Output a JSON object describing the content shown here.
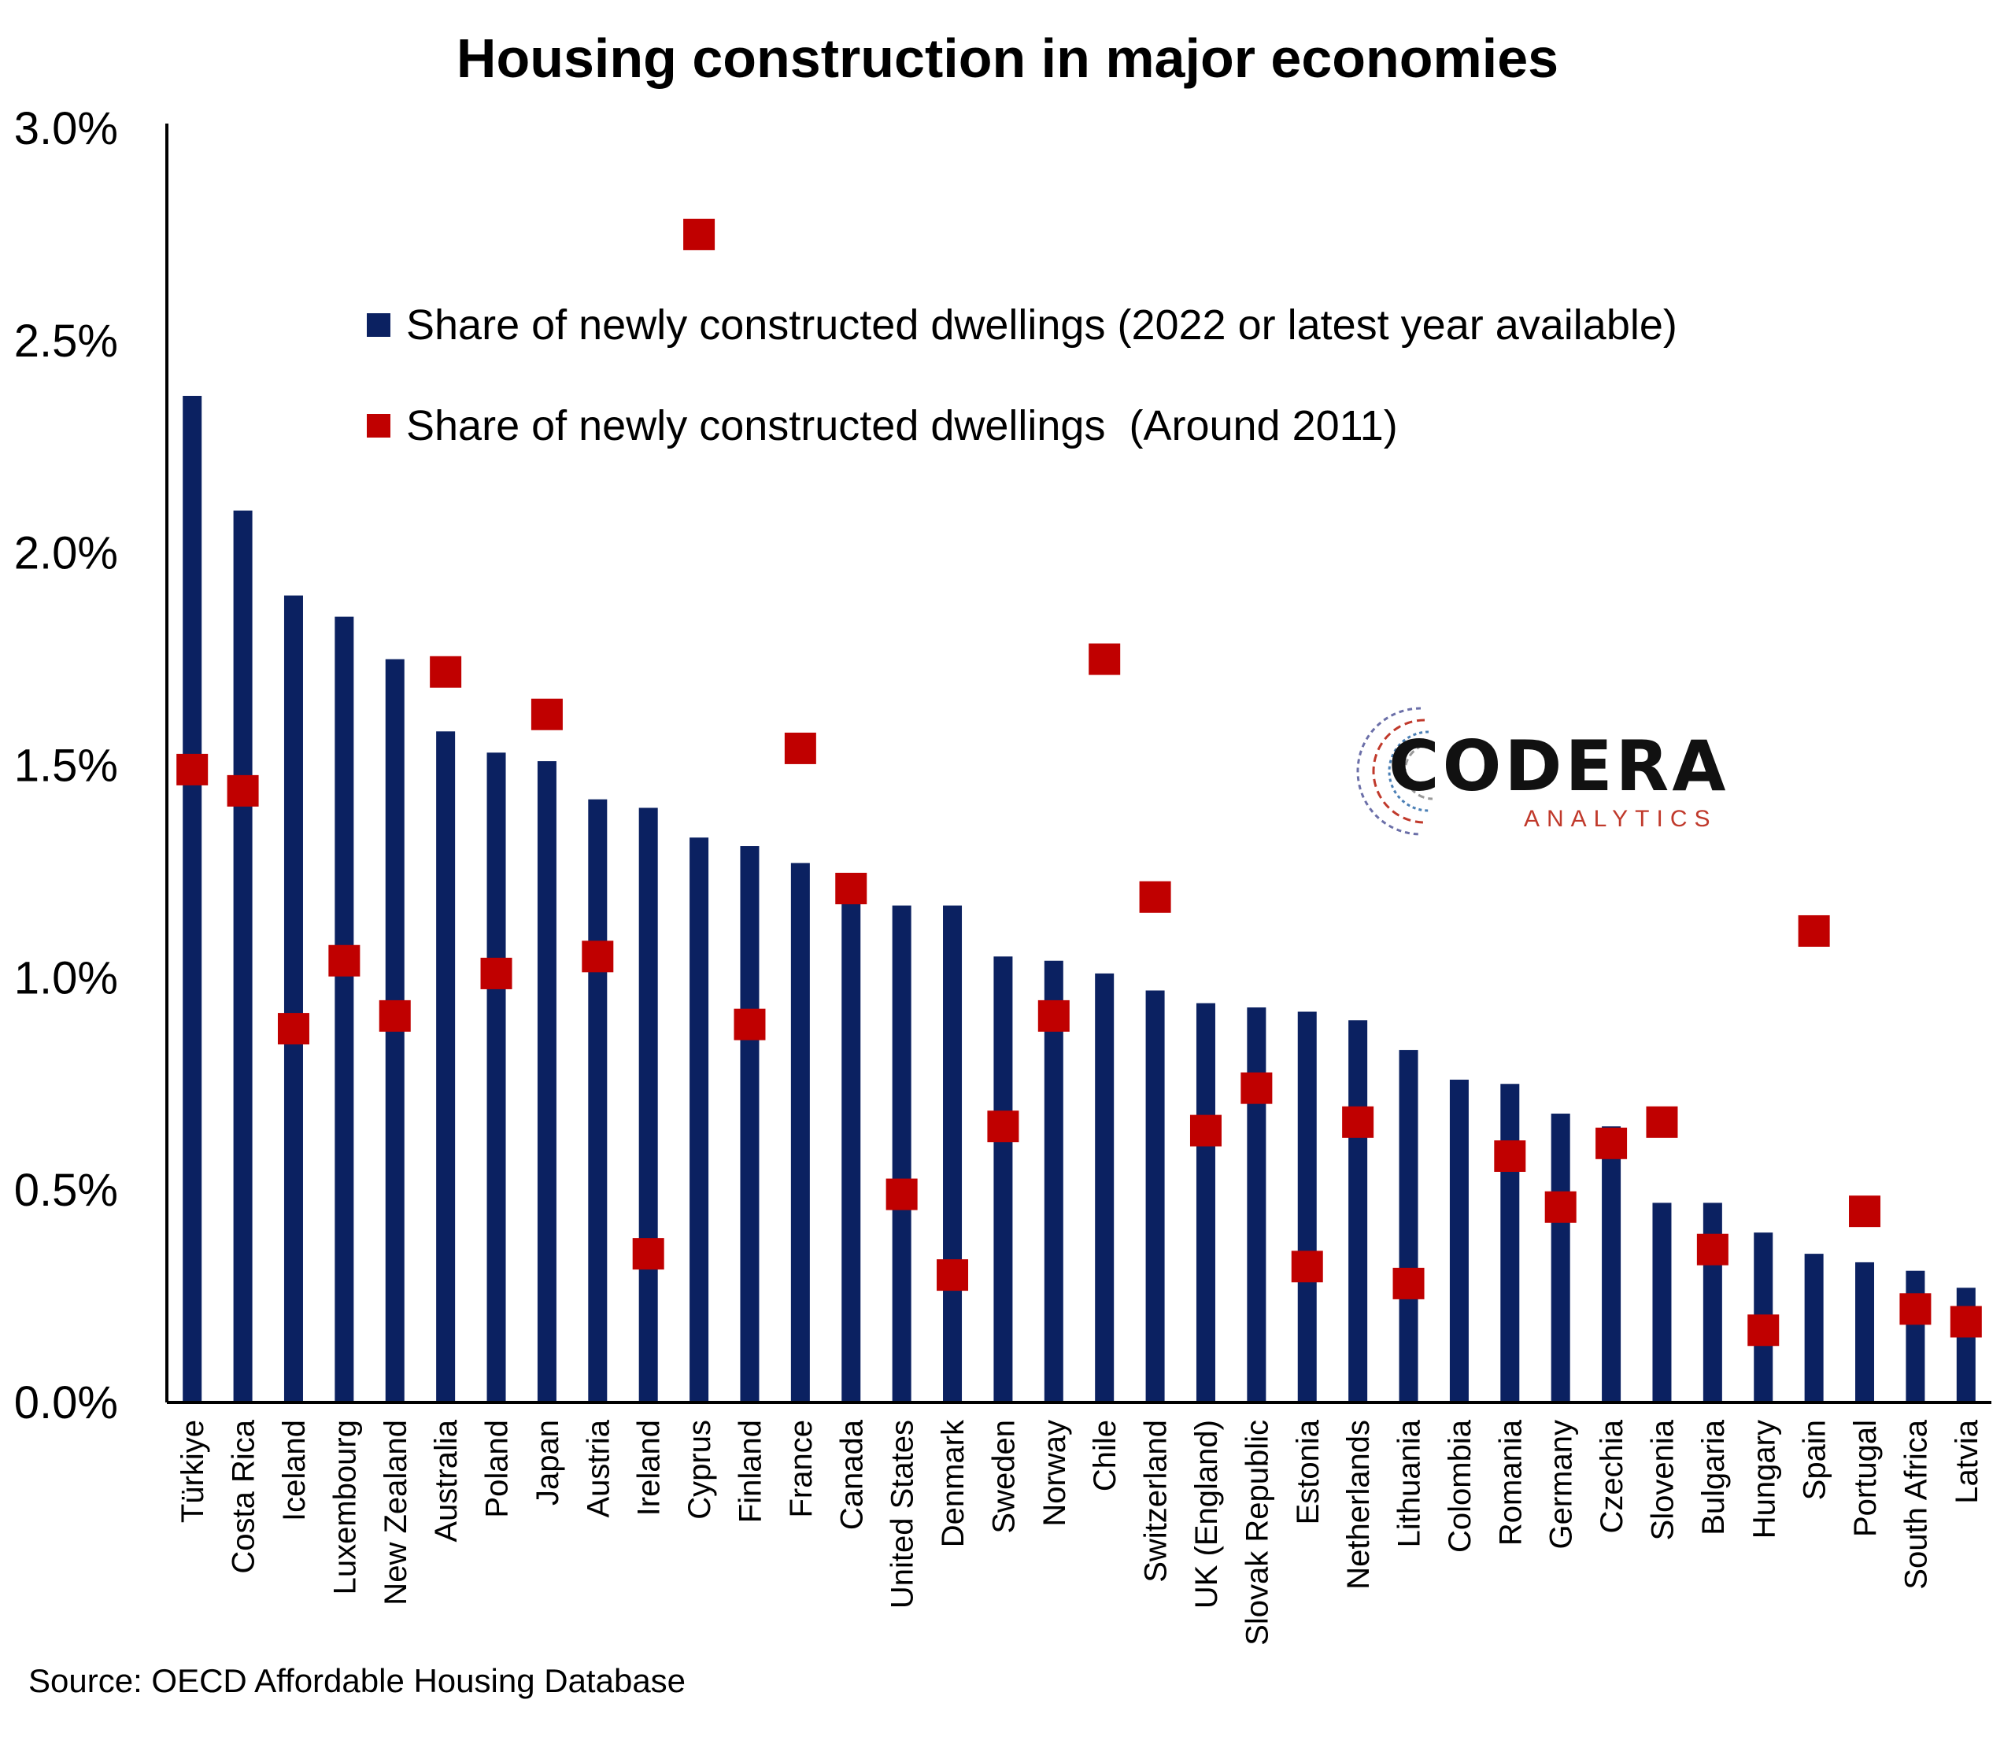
{
  "title": "Housing construction in major economies",
  "source": "Source: OECD Affordable Housing Database",
  "logo": {
    "word": "CODERA",
    "sub": "ANALYTICS"
  },
  "colors": {
    "bar": "#0b2161",
    "marker": "#c00000",
    "axis": "#000000"
  },
  "chart_data": {
    "type": "bar",
    "title": "Housing construction in major economies",
    "xlabel": "",
    "ylabel": "",
    "ylim": [
      0,
      0.03
    ],
    "yticks": [
      "0.0%",
      "0.5%",
      "1.0%",
      "1.5%",
      "2.0%",
      "2.5%",
      "3.0%"
    ],
    "legend_position": "top-center",
    "grid": false,
    "categories": [
      "Türkiye",
      "Costa Rica",
      "Iceland",
      "Luxembourg",
      "New Zealand",
      "Australia",
      "Poland",
      "Japan",
      "Austria",
      "Ireland",
      "Cyprus",
      "Finland",
      "France",
      "Canada",
      "United States",
      "Denmark",
      "Sweden",
      "Norway",
      "Chile",
      "Switzerland",
      "UK (England)",
      "Slovak Republic",
      "Estonia",
      "Netherlands",
      "Lithuania",
      "Colombia",
      "Romania",
      "Germany",
      "Czechia",
      "Slovenia",
      "Bulgaria",
      "Hungary",
      "Spain",
      "Portugal",
      "South Africa",
      "Latvia"
    ],
    "series": [
      {
        "name": "Share of newly constructed dwellings (2022 or latest year available)",
        "kind": "bar",
        "values": [
          0.0237,
          0.021,
          0.019,
          0.0185,
          0.0175,
          0.0158,
          0.0153,
          0.0151,
          0.0142,
          0.014,
          0.0133,
          0.0131,
          0.0127,
          0.0121,
          0.0117,
          0.0117,
          0.0105,
          0.0104,
          0.0101,
          0.0097,
          0.0094,
          0.0093,
          0.0092,
          0.009,
          0.0083,
          0.0076,
          0.0075,
          0.0068,
          0.0065,
          0.0047,
          0.0047,
          0.004,
          0.0035,
          0.0033,
          0.0031,
          0.0027
        ]
      },
      {
        "name": "Share of newly constructed dwellings  (Around 2011)",
        "kind": "marker",
        "values": [
          0.0149,
          0.0144,
          0.0088,
          0.0104,
          0.0091,
          0.0172,
          0.0101,
          0.0162,
          0.0105,
          0.0035,
          0.0275,
          0.0089,
          0.0154,
          0.0121,
          0.0049,
          0.003,
          0.0065,
          0.0091,
          0.0175,
          0.0119,
          0.0064,
          0.0074,
          0.0032,
          0.0066,
          0.0028,
          null,
          0.0058,
          0.0046,
          0.0061,
          0.0066,
          0.0036,
          0.0017,
          0.0111,
          0.0045,
          0.0022,
          0.0019
        ]
      }
    ]
  }
}
